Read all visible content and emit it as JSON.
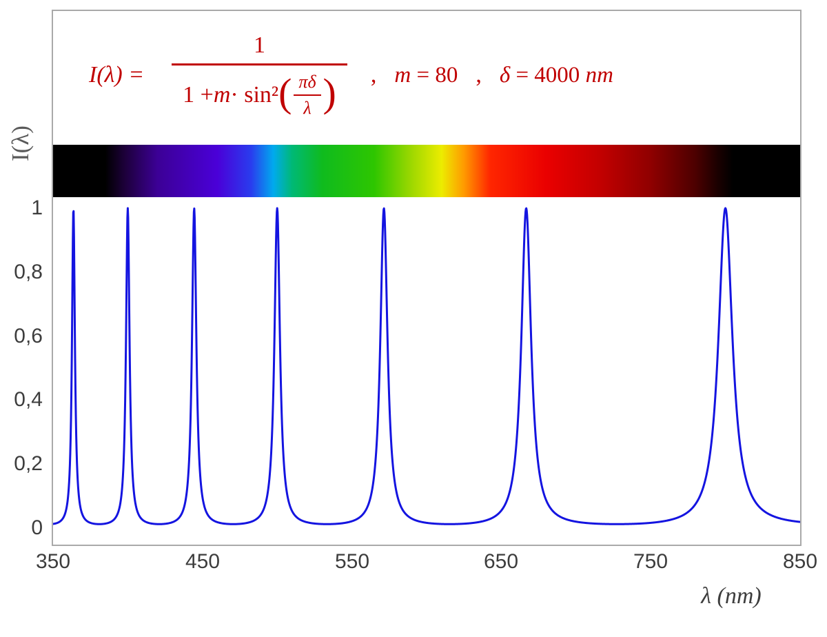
{
  "formula": {
    "lhs": "I(λ) =",
    "numerator": "1",
    "denom_pre": "1 + ",
    "denom_var": "m",
    "denom_post": " · sin²",
    "paren_open": "(",
    "paren_close": ")",
    "inner_num": "πδ",
    "inner_den": "λ",
    "comma": ",",
    "param1_var": "m",
    "param1_rest": " = 80",
    "param2_var": "δ",
    "param2_rest": " = 4000 ",
    "param2_unit": "nm"
  },
  "axes": {
    "y_title": "I(λ)",
    "x_title": "λ (nm)",
    "y_ticks": [
      "1",
      "0,8",
      "0,6",
      "0,4",
      "0,2",
      "0"
    ],
    "x_ticks": [
      "350",
      "450",
      "550",
      "650",
      "750",
      "850"
    ]
  },
  "chart_data": {
    "type": "line",
    "title": "Airy / Fabry–Pérot transmission function I(λ) = 1 / (1 + m·sin²(πδ/λ))",
    "params": {
      "m": 80,
      "delta_nm": 4000
    },
    "x_range_nm": [
      350,
      850
    ],
    "y_range": [
      0,
      1
    ],
    "x_tick_values": [
      350,
      450,
      550,
      650,
      750,
      850
    ],
    "y_tick_values": [
      0,
      0.2,
      0.4,
      0.6,
      0.8,
      1
    ],
    "peaks_nm": [
      363.6,
      400.0,
      444.4,
      500.0,
      571.4,
      666.7,
      800.0
    ],
    "peak_intensity": 1,
    "baseline_intensity": 0.012,
    "sample_step_nm": 0.25,
    "curve_color": "#1414e0",
    "formula_color": "#c00000",
    "grid": false,
    "legend": false,
    "spectrum_bar": {
      "description": "visible-spectrum strip spanning 350–850 nm, black outside ~390–790 nm",
      "stops": [
        {
          "pos": 0,
          "color": "#000000"
        },
        {
          "pos": 7,
          "color": "#000000"
        },
        {
          "pos": 9.5,
          "color": "#1c0038"
        },
        {
          "pos": 14,
          "color": "#3c0096"
        },
        {
          "pos": 22,
          "color": "#4a00d8"
        },
        {
          "pos": 26.5,
          "color": "#2a3cee"
        },
        {
          "pos": 29.5,
          "color": "#00aaee"
        },
        {
          "pos": 32,
          "color": "#00b975"
        },
        {
          "pos": 36,
          "color": "#0fbb1e"
        },
        {
          "pos": 43,
          "color": "#2ec600"
        },
        {
          "pos": 48,
          "color": "#9ed800"
        },
        {
          "pos": 52,
          "color": "#ecec00"
        },
        {
          "pos": 55,
          "color": "#ff9a00"
        },
        {
          "pos": 58.5,
          "color": "#ff2600"
        },
        {
          "pos": 66,
          "color": "#ea0000"
        },
        {
          "pos": 73,
          "color": "#c40000"
        },
        {
          "pos": 80,
          "color": "#8f0000"
        },
        {
          "pos": 86,
          "color": "#4c0000"
        },
        {
          "pos": 89,
          "color": "#1a0000"
        },
        {
          "pos": 91,
          "color": "#000000"
        },
        {
          "pos": 100,
          "color": "#000000"
        }
      ]
    }
  }
}
